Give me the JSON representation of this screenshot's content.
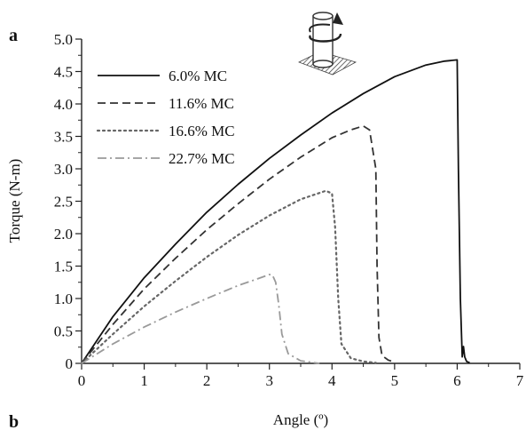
{
  "figure": {
    "panel_a_label": "a",
    "panel_b_label": "b"
  },
  "chart_data": {
    "type": "line",
    "title": "",
    "xlabel": "Angle (º)",
    "ylabel": "Torque (N-m)",
    "xlim": [
      0,
      7
    ],
    "ylim": [
      0,
      5.0
    ],
    "x_ticks": [
      0,
      1,
      2,
      3,
      4,
      5,
      6,
      7
    ],
    "x_tick_labels": [
      "0",
      "1",
      "2",
      "3",
      "4",
      "5",
      "6",
      "7"
    ],
    "y_ticks": [
      0,
      0.5,
      1.0,
      1.5,
      2.0,
      2.5,
      3.0,
      3.5,
      4.0,
      4.5,
      5.0
    ],
    "y_tick_labels": [
      "0",
      "0.5",
      "1.0",
      "1.5",
      "2.0",
      "2.5",
      "3.0",
      "3.5",
      "4.0",
      "4.5",
      "5.0"
    ],
    "grid": false,
    "legend_position": "top-left",
    "series": [
      {
        "name": "6.0% MC",
        "style": "solid",
        "color": "#111111",
        "x": [
          0,
          0.5,
          1.0,
          1.5,
          2.0,
          2.5,
          3.0,
          3.5,
          4.0,
          4.5,
          5.0,
          5.5,
          5.8,
          6.0,
          6.02,
          6.05,
          6.08,
          6.1,
          6.12,
          6.15,
          6.2
        ],
        "y": [
          0,
          0.72,
          1.32,
          1.84,
          2.33,
          2.76,
          3.16,
          3.52,
          3.86,
          4.16,
          4.42,
          4.6,
          4.66,
          4.68,
          3.0,
          1.0,
          0.1,
          0.26,
          0.1,
          0.03,
          0.01
        ]
      },
      {
        "name": "11.6% MC",
        "style": "dashed",
        "color": "#333333",
        "x": [
          0,
          0.5,
          1.0,
          1.5,
          2.0,
          2.5,
          3.0,
          3.5,
          4.0,
          4.3,
          4.5,
          4.6,
          4.7,
          4.72,
          4.75,
          4.8,
          4.9,
          5.0
        ],
        "y": [
          0,
          0.6,
          1.15,
          1.62,
          2.06,
          2.46,
          2.84,
          3.18,
          3.48,
          3.6,
          3.66,
          3.6,
          3.0,
          1.5,
          0.4,
          0.12,
          0.05,
          0.02
        ]
      },
      {
        "name": "16.6% MC",
        "style": "dotted",
        "color": "#666666",
        "x": [
          0,
          0.5,
          1.0,
          1.5,
          2.0,
          2.5,
          3.0,
          3.5,
          3.9,
          4.0,
          4.05,
          4.1,
          4.15,
          4.3,
          4.5,
          4.7
        ],
        "y": [
          0,
          0.45,
          0.88,
          1.27,
          1.64,
          1.98,
          2.28,
          2.53,
          2.66,
          2.62,
          2.1,
          1.0,
          0.3,
          0.08,
          0.03,
          0.01
        ]
      },
      {
        "name": "22.7% MC",
        "style": "dashdot",
        "color": "#9a9a9a",
        "x": [
          0,
          0.5,
          1.0,
          1.5,
          2.0,
          2.5,
          2.8,
          3.0,
          3.05,
          3.1,
          3.15,
          3.2,
          3.3,
          3.5,
          3.8
        ],
        "y": [
          0,
          0.3,
          0.56,
          0.79,
          1.0,
          1.2,
          1.3,
          1.37,
          1.36,
          1.25,
          0.9,
          0.45,
          0.15,
          0.04,
          0.0
        ]
      }
    ]
  }
}
